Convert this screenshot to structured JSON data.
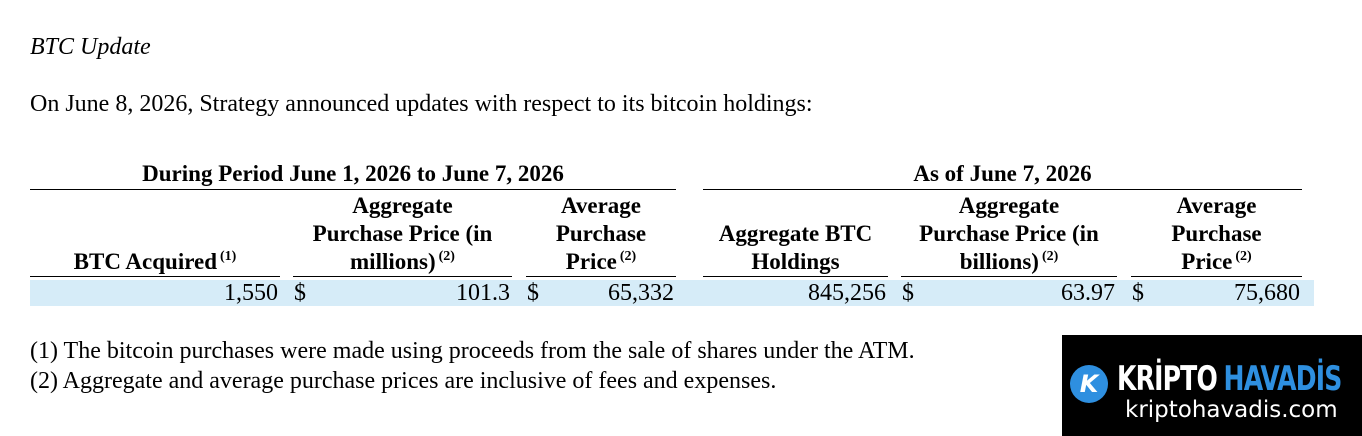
{
  "section_title": "BTC Update",
  "intro": "On June 8, 2026, Strategy announced updates with respect to its bitcoin holdings:",
  "table": {
    "groups": [
      "During Period June 1, 2026 to June 7, 2026",
      "As of June 7, 2026"
    ],
    "headers": [
      {
        "lines": [
          "BTC Acquired"
        ],
        "note": "(1)"
      },
      {
        "lines": [
          "Aggregate",
          "Purchase Price (in",
          "millions)"
        ],
        "note": "(2)"
      },
      {
        "lines": [
          "Average",
          "Purchase",
          "Price"
        ],
        "note": "(2)"
      },
      {
        "lines": [
          "Aggregate BTC",
          "Holdings"
        ]
      },
      {
        "lines": [
          "Aggregate",
          "Purchase Price (in",
          "billions)"
        ],
        "note": "(2)"
      },
      {
        "lines": [
          "Average",
          "Purchase",
          "Price"
        ],
        "note": "(2)"
      }
    ],
    "row": [
      {
        "value": "1,550"
      },
      {
        "currency": "$",
        "value": "101.3"
      },
      {
        "currency": "$",
        "value": "65,332"
      },
      {
        "value": "845,256"
      },
      {
        "currency": "$",
        "value": "63.97"
      },
      {
        "currency": "$",
        "value": "75,680"
      }
    ]
  },
  "footnotes": [
    "(1) The bitcoin purchases were made using proceeds from the sale of shares under the ATM.",
    "(2) Aggregate and average purchase prices are inclusive of fees and expenses."
  ],
  "watermark": {
    "logo": "K",
    "brand_left": "KRİPTO",
    "brand_right": "HAVADİS",
    "url": "kriptohavadis.com"
  }
}
